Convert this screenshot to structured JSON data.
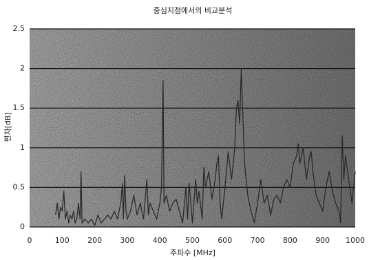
{
  "chart_data": {
    "type": "line",
    "title": "중심지점에서의 비교분석",
    "xlabel": "주파수 [MHz]",
    "ylabel": "편차[dB]",
    "x": [
      80,
      85,
      90,
      95,
      100,
      105,
      110,
      115,
      120,
      125,
      130,
      135,
      140,
      145,
      150,
      155,
      158,
      161,
      170,
      180,
      190,
      200,
      210,
      220,
      230,
      240,
      250,
      260,
      270,
      280,
      285,
      288,
      292,
      296,
      300,
      310,
      320,
      330,
      340,
      350,
      360,
      365,
      370,
      380,
      390,
      400,
      405,
      410,
      413,
      420,
      430,
      440,
      450,
      460,
      470,
      480,
      485,
      490,
      500,
      510,
      515,
      520,
      530,
      535,
      540,
      550,
      560,
      570,
      575,
      580,
      585,
      590,
      600,
      610,
      620,
      630,
      635,
      640,
      645,
      650,
      655,
      660,
      670,
      680,
      690,
      700,
      710,
      720,
      730,
      740,
      750,
      760,
      770,
      780,
      790,
      800,
      810,
      820,
      825,
      830,
      840,
      850,
      860,
      865,
      870,
      880,
      890,
      900,
      910,
      920,
      930,
      940,
      950,
      955,
      960,
      965,
      970,
      980,
      990,
      1000
    ],
    "values": [
      0.15,
      0.3,
      0.1,
      0.25,
      0.2,
      0.45,
      0.1,
      0.2,
      0.05,
      0.15,
      0.1,
      0.2,
      0.05,
      0.1,
      0.3,
      0.1,
      0.7,
      0.05,
      0.1,
      0.05,
      0.1,
      0.02,
      0.15,
      0.05,
      0.1,
      0.15,
      0.1,
      0.2,
      0.1,
      0.3,
      0.55,
      0.1,
      0.65,
      0.2,
      0.1,
      0.2,
      0.4,
      0.15,
      0.3,
      0.1,
      0.6,
      0.15,
      0.3,
      0.2,
      0.1,
      0.3,
      0.5,
      1.85,
      0.3,
      0.4,
      0.2,
      0.3,
      0.35,
      0.2,
      0.05,
      0.5,
      0.1,
      0.55,
      0.05,
      0.6,
      0.3,
      0.45,
      0.1,
      0.75,
      0.5,
      0.7,
      0.35,
      0.6,
      0.8,
      0.9,
      0.3,
      0.1,
      0.5,
      0.95,
      0.6,
      1.0,
      1.5,
      1.6,
      1.3,
      2.0,
      1.4,
      0.8,
      0.4,
      0.2,
      0.05,
      0.3,
      0.6,
      0.3,
      0.4,
      0.15,
      0.35,
      0.4,
      0.3,
      0.5,
      0.6,
      0.5,
      0.8,
      0.9,
      1.05,
      0.8,
      1.0,
      0.6,
      0.9,
      0.95,
      0.7,
      0.4,
      0.3,
      0.2,
      0.5,
      0.7,
      0.45,
      0.3,
      0.2,
      0.05,
      1.15,
      0.6,
      0.9,
      0.6,
      0.3,
      0.7
    ],
    "color": "#2a2a2a",
    "xlim": [
      0,
      1000
    ],
    "xticks": [
      0,
      100,
      200,
      300,
      400,
      500,
      600,
      700,
      800,
      900,
      1000
    ],
    "ylim": [
      0,
      2.5
    ],
    "yticks": [
      0,
      0.5,
      1,
      1.5,
      2,
      2.5
    ],
    "grid": true
  }
}
